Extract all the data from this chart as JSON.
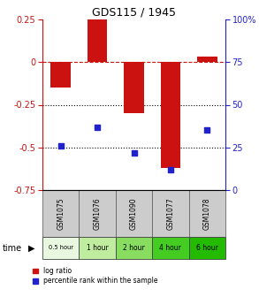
{
  "title": "GDS115 / 1945",
  "samples": [
    "GSM1075",
    "GSM1076",
    "GSM1090",
    "GSM1077",
    "GSM1078"
  ],
  "time_labels": [
    "0.5 hour",
    "1 hour",
    "2 hour",
    "4 hour",
    "6 hour"
  ],
  "time_colors": [
    "#e8f8e0",
    "#c0eca0",
    "#88dd60",
    "#44cc22",
    "#22bb00"
  ],
  "log_ratio": [
    -0.15,
    0.25,
    -0.3,
    -0.62,
    0.03
  ],
  "percentile": [
    26,
    37,
    22,
    12,
    35
  ],
  "bar_color": "#cc1111",
  "dot_color": "#2222cc",
  "ylim_left": [
    -0.75,
    0.25
  ],
  "ylim_right": [
    0,
    100
  ],
  "yticks_left": [
    0.25,
    0,
    -0.25,
    -0.5,
    -0.75
  ],
  "yticks_right": [
    100,
    75,
    50,
    25,
    0
  ],
  "hlines": [
    0,
    -0.25,
    -0.5
  ],
  "hline_styles": [
    "--",
    ":",
    ":"
  ],
  "hline_colors": [
    "#cc1111",
    "black",
    "black"
  ],
  "legend_log_label": "log ratio",
  "legend_pct_label": "percentile rank within the sample",
  "time_row_label": "time",
  "bar_width": 0.55,
  "sample_bg": "#cccccc"
}
